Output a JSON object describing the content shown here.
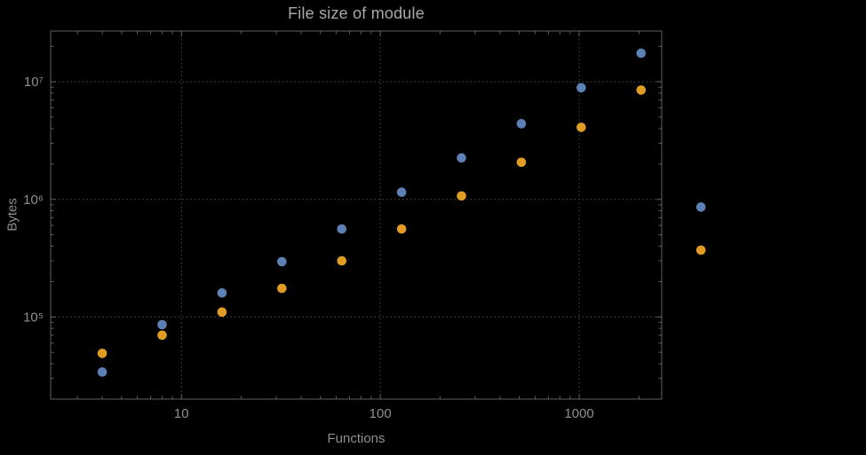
{
  "chart": {
    "colors": {
      "background": "#000000",
      "frame": "#5f5f5f",
      "tick": "#5f5f5f",
      "grid": "#4d4d4d",
      "text": "#8f8f8f",
      "title_text": "#a8a8a8",
      "series_blue": "#5e81b5",
      "series_orange": "#e19c24"
    }
  },
  "chart_data": {
    "type": "scatter",
    "title": "File size of module",
    "xlabel": "Functions",
    "ylabel": "Bytes",
    "x_scale": "log",
    "y_scale": "log",
    "xlim": [
      2.2,
      2600
    ],
    "ylim": [
      20000,
      27000000
    ],
    "grid": "dotted lines at decade ticks",
    "legend": "none",
    "x_ticks": [
      {
        "value": 10,
        "label": "10"
      },
      {
        "value": 100,
        "label": "100"
      },
      {
        "value": 1000,
        "label": "1000"
      }
    ],
    "y_ticks": [
      {
        "value": 100000,
        "label": "10⁵"
      },
      {
        "value": 1000000,
        "label": "10⁶"
      },
      {
        "value": 10000000,
        "label": "10⁷"
      }
    ],
    "series": [
      {
        "name": "blue",
        "color": "#5e81b5",
        "points": [
          [
            4,
            34000
          ],
          [
            8,
            86000
          ],
          [
            16,
            160000
          ],
          [
            32,
            295000
          ],
          [
            64,
            560000
          ],
          [
            128,
            1150000
          ],
          [
            256,
            2250000
          ],
          [
            512,
            4400000
          ],
          [
            1024,
            8900000
          ],
          [
            2048,
            17500000
          ],
          [
            4096,
            860000
          ]
        ]
      },
      {
        "name": "orange",
        "color": "#e19c24",
        "points": [
          [
            4,
            49000
          ],
          [
            8,
            70000
          ],
          [
            16,
            110000
          ],
          [
            32,
            175000
          ],
          [
            64,
            300000
          ],
          [
            128,
            560000
          ],
          [
            256,
            1070000
          ],
          [
            512,
            2070000
          ],
          [
            1024,
            4100000
          ],
          [
            2048,
            8500000
          ],
          [
            4096,
            370000
          ]
        ]
      }
    ]
  }
}
